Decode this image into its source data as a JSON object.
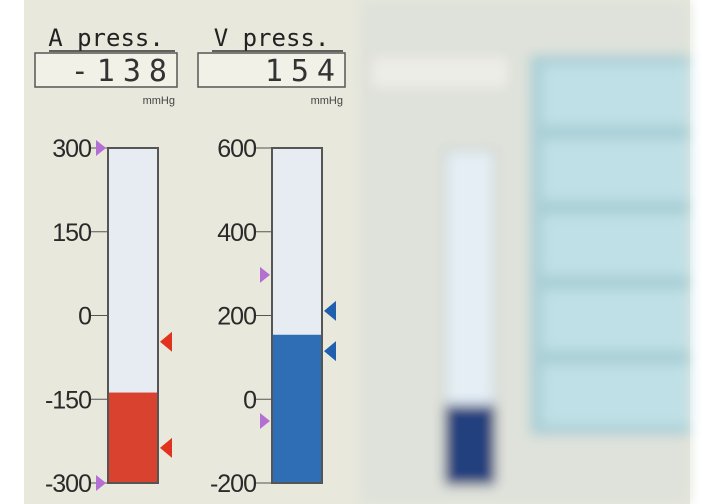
{
  "gauges": [
    {
      "label": "A press.",
      "value": -138,
      "unit": "mmHg",
      "min": -300,
      "max": 300,
      "ticks": [
        300,
        150,
        0,
        -150,
        -300
      ],
      "color": "#d8422f",
      "markers": [
        {
          "value": 300,
          "color": "#b46fd2",
          "side": "left"
        },
        {
          "value": -300,
          "color": "#b46fd2",
          "side": "left"
        },
        {
          "value": -47,
          "color": "#e0321e",
          "side": "right"
        },
        {
          "value": -237,
          "color": "#e0321e",
          "side": "right"
        }
      ]
    },
    {
      "label": "V press.",
      "value": 154,
      "unit": "mmHg",
      "min": -200,
      "max": 600,
      "ticks": [
        600,
        400,
        200,
        0,
        -200
      ],
      "color": "#2f6db5",
      "markers": [
        {
          "value": 297,
          "color": "#b46fd2",
          "side": "left"
        },
        {
          "value": -52,
          "color": "#b46fd2",
          "side": "left"
        },
        {
          "value": 211,
          "color": "#1f5fae",
          "side": "right"
        },
        {
          "value": 115,
          "color": "#1f5fae",
          "side": "right"
        }
      ]
    }
  ]
}
